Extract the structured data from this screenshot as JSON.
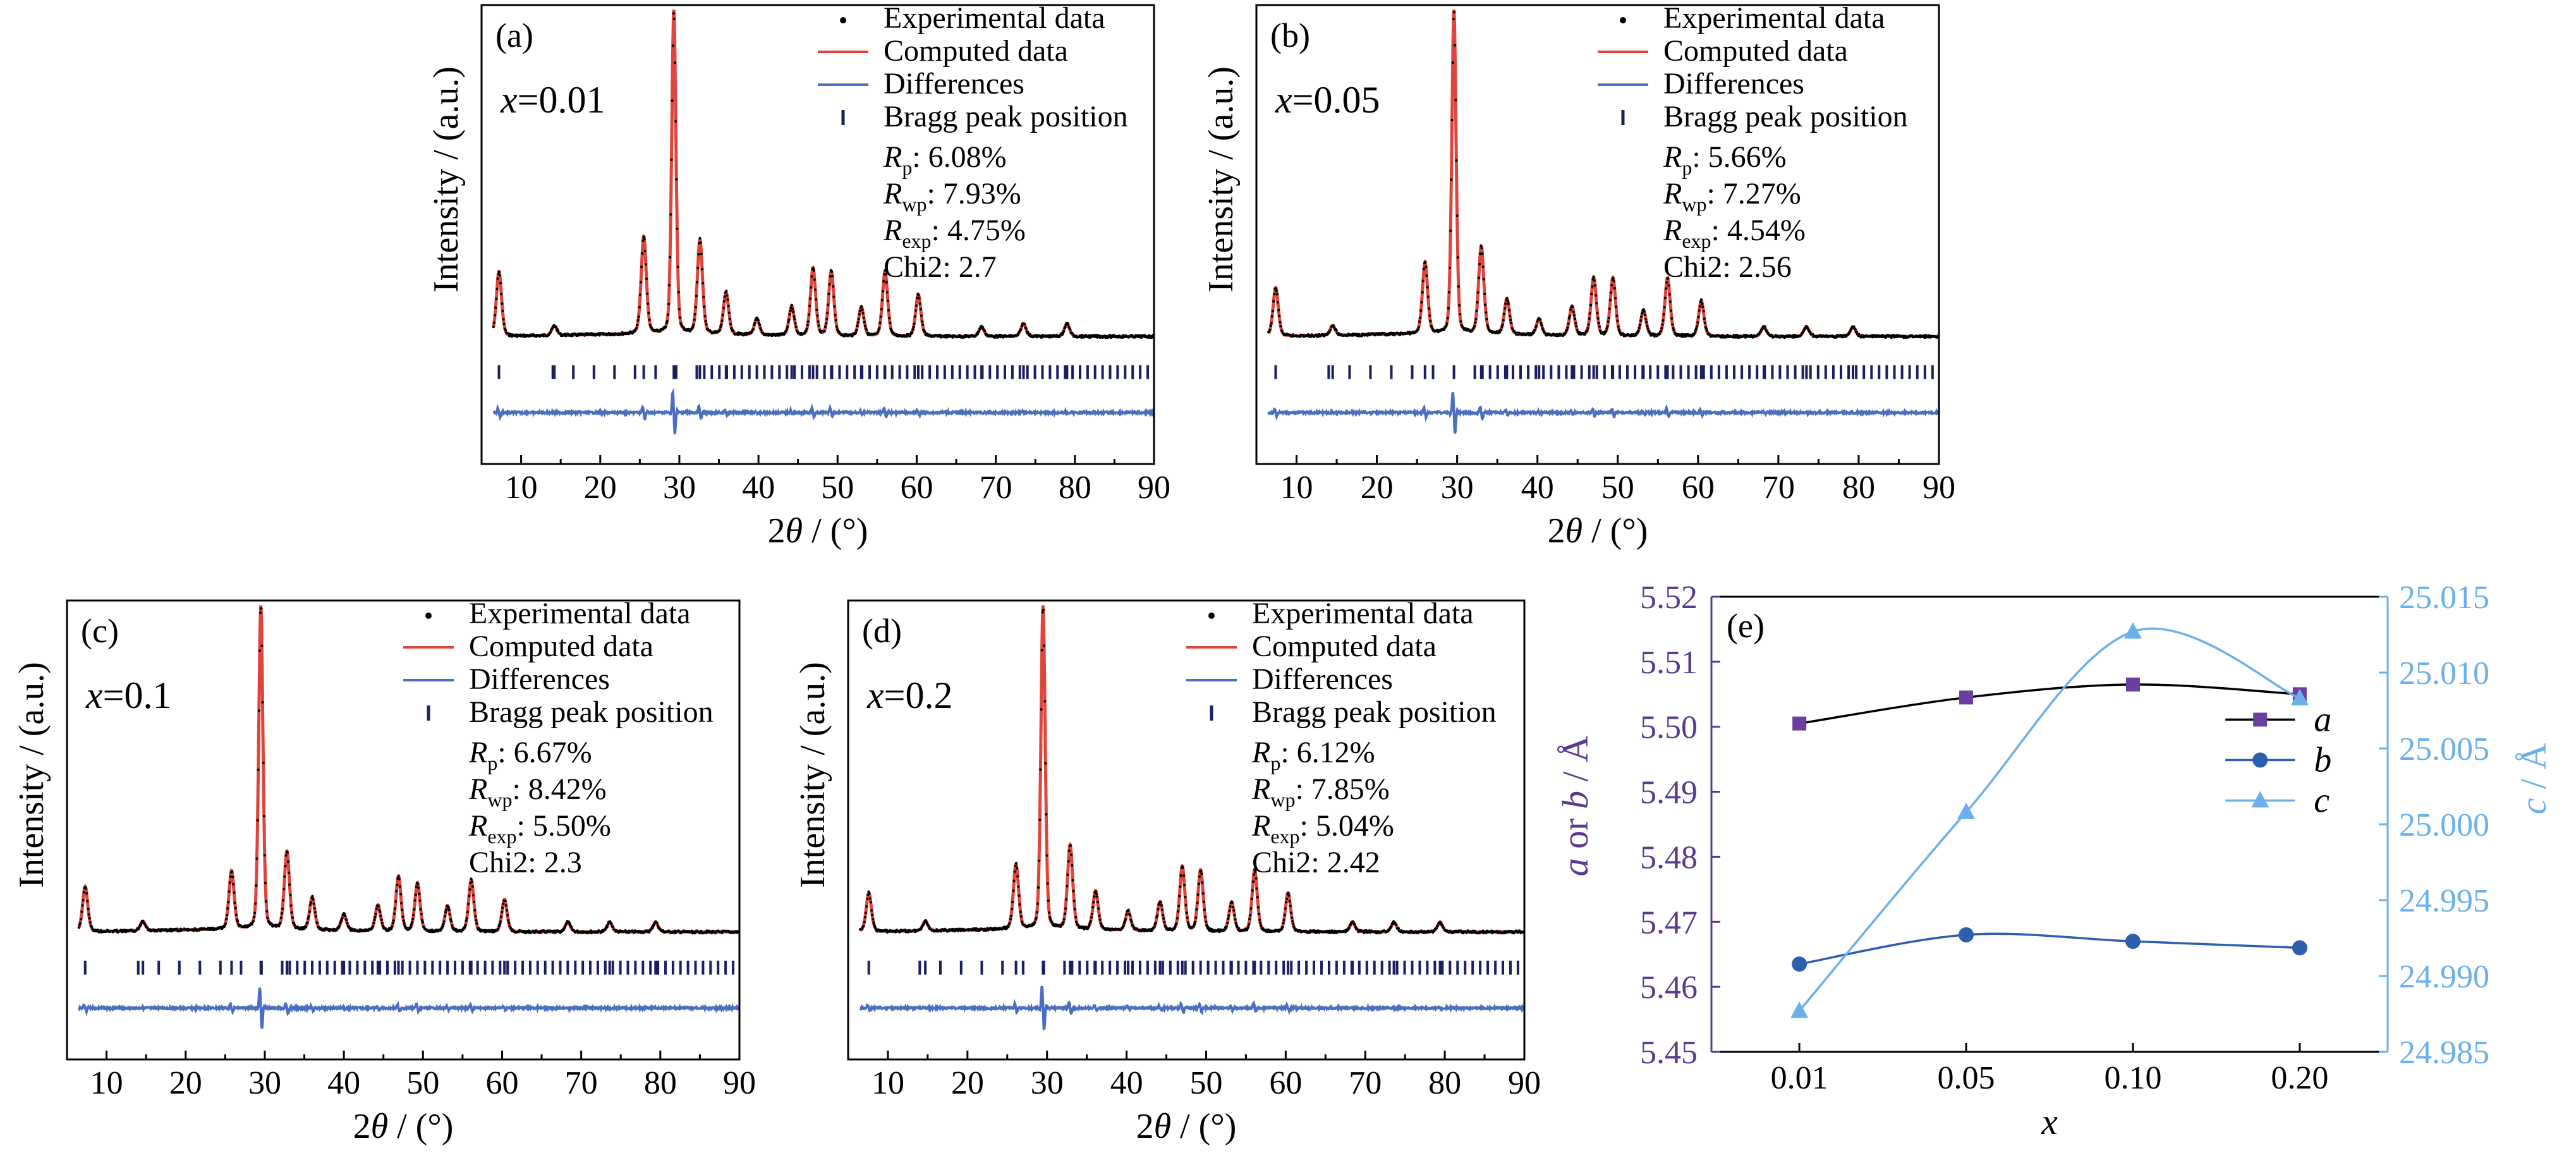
{
  "axis_labels": {
    "intensity": "Intensity / (a.u.)",
    "two_theta_symbol": "2θ",
    "two_theta_unit": " / (°)",
    "x_label": "x",
    "left_y_a": "a",
    "left_y_or": " or ",
    "left_y_b": "b",
    "left_y_unit": " / Å",
    "right_y_c": "c",
    "right_y_unit": " / Å"
  },
  "legend_labels": {
    "experimental": "Experimental data",
    "computed": "Computed data",
    "differences": "Differences",
    "bragg": "Bragg peak position"
  },
  "colors": {
    "experimental": "#000000",
    "computed": "#e0443a",
    "differences": "#4a6fc0",
    "bragg": "#1b1f5e",
    "a_series": "#6b3fa0",
    "b_series": "#2d5fb0",
    "c_series": "#6bb0ea",
    "left_axis_text": "#5a3a8e",
    "right_axis_text": "#6bb0ea"
  },
  "chart_data": [
    {
      "type": "line",
      "panel": "(a)",
      "composition_symbol": "x",
      "composition_value": "=0.01",
      "x_range": [
        5,
        90
      ],
      "x_ticks": [
        "10",
        "20",
        "30",
        "40",
        "50",
        "60",
        "70",
        "80",
        "90"
      ],
      "ylabel": "Intensity / (a.u.)",
      "xlabel": "2θ / (°)",
      "legend_position": "top-right",
      "peaks": [
        {
          "pos": 7.2,
          "h": 0.2
        },
        {
          "pos": 14.2,
          "h": 0.03
        },
        {
          "pos": 25.5,
          "h": 0.3
        },
        {
          "pos": 29.3,
          "h": 1.0
        },
        {
          "pos": 32.6,
          "h": 0.29
        },
        {
          "pos": 35.9,
          "h": 0.13
        },
        {
          "pos": 39.8,
          "h": 0.05
        },
        {
          "pos": 44.2,
          "h": 0.09
        },
        {
          "pos": 46.9,
          "h": 0.21
        },
        {
          "pos": 49.2,
          "h": 0.2
        },
        {
          "pos": 53.0,
          "h": 0.09
        },
        {
          "pos": 56.0,
          "h": 0.2
        },
        {
          "pos": 60.2,
          "h": 0.13
        },
        {
          "pos": 68.2,
          "h": 0.03
        },
        {
          "pos": 73.5,
          "h": 0.04
        },
        {
          "pos": 79.0,
          "h": 0.04
        }
      ],
      "stats": [
        {
          "sym": "R",
          "sub": "p",
          "val": ": 6.08%"
        },
        {
          "sym": "R",
          "sub": "wp",
          "val": ": 7.93%"
        },
        {
          "sym": "R",
          "sub": "exp",
          "val": ": 4.75%"
        },
        {
          "sym": "",
          "sub": "",
          "val": "Chi2: 2.7"
        }
      ]
    },
    {
      "type": "line",
      "panel": "(b)",
      "composition_symbol": "x",
      "composition_value": "=0.05",
      "x_range": [
        5,
        90
      ],
      "x_ticks": [
        "10",
        "20",
        "30",
        "40",
        "50",
        "60",
        "70",
        "80",
        "90"
      ],
      "ylabel": "Intensity / (a.u.)",
      "xlabel": "2θ / (°)",
      "legend_position": "top-right",
      "peaks": [
        {
          "pos": 7.4,
          "h": 0.15
        },
        {
          "pos": 14.5,
          "h": 0.03
        },
        {
          "pos": 26.0,
          "h": 0.22
        },
        {
          "pos": 29.6,
          "h": 1.0
        },
        {
          "pos": 33.0,
          "h": 0.27
        },
        {
          "pos": 36.2,
          "h": 0.11
        },
        {
          "pos": 40.2,
          "h": 0.05
        },
        {
          "pos": 44.3,
          "h": 0.09
        },
        {
          "pos": 47.0,
          "h": 0.18
        },
        {
          "pos": 49.4,
          "h": 0.18
        },
        {
          "pos": 53.2,
          "h": 0.08
        },
        {
          "pos": 56.2,
          "h": 0.18
        },
        {
          "pos": 60.4,
          "h": 0.11
        },
        {
          "pos": 68.2,
          "h": 0.03
        },
        {
          "pos": 73.5,
          "h": 0.03
        },
        {
          "pos": 79.3,
          "h": 0.03
        }
      ],
      "stats": [
        {
          "sym": "R",
          "sub": "p",
          "val": ": 5.66%"
        },
        {
          "sym": "R",
          "sub": "wp",
          "val": ": 7.27%"
        },
        {
          "sym": "R",
          "sub": "exp",
          "val": ": 4.54%"
        },
        {
          "sym": "",
          "sub": "",
          "val": "Chi2: 2.56"
        }
      ]
    },
    {
      "type": "line",
      "panel": "(c)",
      "composition_symbol": "x",
      "composition_value": "=0.1",
      "x_range": [
        5,
        90
      ],
      "x_ticks": [
        "10",
        "20",
        "30",
        "40",
        "50",
        "60",
        "70",
        "80",
        "90"
      ],
      "ylabel": "Intensity / (a.u.)",
      "xlabel": "2θ / (°)",
      "legend_position": "top-right",
      "peaks": [
        {
          "pos": 7.3,
          "h": 0.14
        },
        {
          "pos": 14.6,
          "h": 0.03
        },
        {
          "pos": 25.8,
          "h": 0.18
        },
        {
          "pos": 29.5,
          "h": 1.0
        },
        {
          "pos": 32.8,
          "h": 0.24
        },
        {
          "pos": 36.0,
          "h": 0.1
        },
        {
          "pos": 40.0,
          "h": 0.05
        },
        {
          "pos": 44.3,
          "h": 0.08
        },
        {
          "pos": 46.9,
          "h": 0.17
        },
        {
          "pos": 49.3,
          "h": 0.15
        },
        {
          "pos": 53.1,
          "h": 0.08
        },
        {
          "pos": 56.1,
          "h": 0.16
        },
        {
          "pos": 60.3,
          "h": 0.1
        },
        {
          "pos": 68.3,
          "h": 0.03
        },
        {
          "pos": 73.6,
          "h": 0.03
        },
        {
          "pos": 79.4,
          "h": 0.03
        }
      ],
      "stats": [
        {
          "sym": "R",
          "sub": "p",
          "val": ": 6.67%"
        },
        {
          "sym": "R",
          "sub": "wp",
          "val": ": 8.42%"
        },
        {
          "sym": "R",
          "sub": "exp",
          "val": ": 5.50%"
        },
        {
          "sym": "",
          "sub": "",
          "val": "Chi2: 2.3"
        }
      ]
    },
    {
      "type": "line",
      "panel": "(d)",
      "composition_symbol": "x",
      "composition_value": "=0.2",
      "x_range": [
        5,
        90
      ],
      "x_ticks": [
        "10",
        "20",
        "30",
        "40",
        "50",
        "60",
        "70",
        "80",
        "90"
      ],
      "ylabel": "Intensity / (a.u.)",
      "xlabel": "2θ / (°)",
      "legend_position": "top-right",
      "peaks": [
        {
          "pos": 7.6,
          "h": 0.12
        },
        {
          "pos": 14.7,
          "h": 0.03
        },
        {
          "pos": 26.1,
          "h": 0.2
        },
        {
          "pos": 29.5,
          "h": 1.0
        },
        {
          "pos": 32.9,
          "h": 0.26
        },
        {
          "pos": 36.1,
          "h": 0.12
        },
        {
          "pos": 40.2,
          "h": 0.06
        },
        {
          "pos": 44.2,
          "h": 0.09
        },
        {
          "pos": 47.0,
          "h": 0.2
        },
        {
          "pos": 49.3,
          "h": 0.19
        },
        {
          "pos": 53.2,
          "h": 0.09
        },
        {
          "pos": 56.1,
          "h": 0.19
        },
        {
          "pos": 60.3,
          "h": 0.12
        },
        {
          "pos": 68.4,
          "h": 0.03
        },
        {
          "pos": 73.6,
          "h": 0.03
        },
        {
          "pos": 79.4,
          "h": 0.03
        }
      ],
      "stats": [
        {
          "sym": "R",
          "sub": "p",
          "val": ": 6.12%"
        },
        {
          "sym": "R",
          "sub": "wp",
          "val": ": 7.85%"
        },
        {
          "sym": "R",
          "sub": "exp",
          "val": ": 5.04%"
        },
        {
          "sym": "",
          "sub": "",
          "val": "Chi2: 2.42"
        }
      ]
    },
    {
      "type": "line",
      "panel": "(e)",
      "categories": [
        "0.01",
        "0.05",
        "0.10",
        "0.20"
      ],
      "xlabel": "x",
      "ylabel": "a or b / Å",
      "ylabel_right": "c / Å",
      "ylim": [
        5.45,
        5.52
      ],
      "yticks": [
        "5.45",
        "5.46",
        "5.47",
        "5.48",
        "5.49",
        "5.50",
        "5.51",
        "5.52"
      ],
      "ylim_right": [
        24.985,
        25.015
      ],
      "yticks_right": [
        "24.985",
        "24.990",
        "24.995",
        "25.000",
        "25.005",
        "25.010",
        "25.015"
      ],
      "legend_position": "center-right",
      "series": [
        {
          "name": "a",
          "axis": "left",
          "marker": "square",
          "values": [
            5.5005,
            5.5045,
            5.5065,
            5.505
          ]
        },
        {
          "name": "b",
          "axis": "left",
          "marker": "circle",
          "values": [
            5.4635,
            5.468,
            5.467,
            5.466
          ]
        },
        {
          "name": "c",
          "axis": "right",
          "marker": "triangle",
          "values": [
            24.9877,
            25.0008,
            25.0127,
            25.0083
          ]
        }
      ]
    }
  ]
}
